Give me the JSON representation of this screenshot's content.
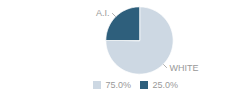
{
  "chart_data": {
    "type": "pie",
    "categories": [
      "WHITE",
      "A.I."
    ],
    "values": [
      75.0,
      25.0
    ],
    "colors": [
      "#cdd8e3",
      "#2e5f7c"
    ],
    "value_labels": [
      "75.0%",
      "25.0%"
    ],
    "legend": "bottom"
  }
}
